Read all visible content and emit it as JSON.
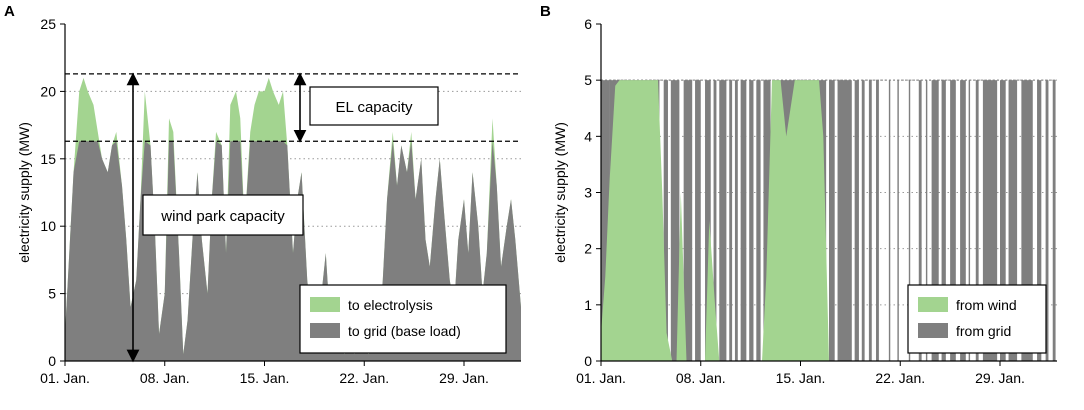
{
  "chart_data": [
    {
      "panel_label": "A",
      "type": "area",
      "stacked": true,
      "ylabel": "electricity supply (MW)",
      "ylim": [
        0,
        25
      ],
      "yticks": [
        "0",
        "5",
        "10",
        "15",
        "20",
        "25"
      ],
      "xlim": [
        0,
        32
      ],
      "xticks": [
        {
          "day": 0,
          "label": "01. Jan."
        },
        {
          "day": 7,
          "label": "08. Jan."
        },
        {
          "day": 14,
          "label": "15. Jan."
        },
        {
          "day": 21,
          "label": "22. Jan."
        },
        {
          "day": 28,
          "label": "29. Jan."
        }
      ],
      "grid_y": true,
      "base_load_limit": 16.3,
      "total_capacity": 21.3,
      "legend_position": "bottom-right",
      "series": [
        {
          "name": "to electrolysis",
          "color": "#a3d490"
        },
        {
          "name": "to grid (base load)",
          "color": "#7f7f7f"
        }
      ],
      "total_profile": {
        "x": [
          0,
          0.3,
          0.6,
          1.0,
          1.3,
          1.6,
          2.0,
          2.3,
          2.6,
          3.0,
          3.3,
          3.6,
          4.0,
          4.3,
          4.6,
          5.0,
          5.3,
          5.6,
          6.0,
          6.3,
          6.6,
          7.0,
          7.3,
          7.6,
          8.0,
          8.3,
          8.6,
          9.0,
          9.3,
          9.6,
          10.0,
          10.3,
          10.6,
          11.0,
          11.3,
          11.6,
          12.0,
          12.3,
          12.6,
          13.0,
          13.3,
          13.6,
          14.0,
          14.3,
          14.6,
          15.0,
          15.3,
          15.6,
          16.0,
          16.3,
          16.6,
          17.0,
          17.3,
          17.6,
          18.0,
          18.3,
          18.6,
          19.0,
          19.3,
          19.6,
          20.0,
          20.3,
          20.6,
          21.0,
          21.3,
          21.6,
          22.0,
          22.3,
          22.6,
          23.0,
          23.3,
          23.6,
          24.0,
          24.3,
          24.6,
          25.0,
          25.3,
          25.6,
          26.0,
          26.3,
          26.6,
          27.0,
          27.3,
          27.6,
          28.0,
          28.3,
          28.6,
          29.0,
          29.3,
          29.6,
          30.0,
          30.3,
          30.6,
          31.0,
          31.3,
          31.6,
          32.0
        ],
        "y": [
          2,
          8,
          14,
          20,
          21,
          20,
          19,
          17,
          15,
          14,
          16,
          17,
          13,
          9,
          4,
          6,
          12,
          20,
          16,
          10,
          2,
          5,
          18,
          17,
          8,
          0.5,
          3,
          10,
          14,
          9,
          5,
          12,
          17,
          16,
          8,
          19,
          20,
          18,
          10,
          17,
          19,
          20,
          20,
          21,
          20,
          19,
          20,
          16,
          8,
          12,
          14,
          6,
          3,
          2,
          5,
          8,
          3,
          1,
          2,
          0.5,
          1,
          0.5,
          2,
          1,
          0.5,
          1,
          2,
          6,
          12,
          17,
          13,
          16,
          14,
          17,
          12,
          15,
          9,
          7,
          12,
          15,
          11,
          6,
          4,
          9,
          12,
          8,
          14,
          10,
          5,
          8,
          18,
          13,
          7,
          10,
          12,
          9,
          4
        ]
      },
      "annotations": [
        {
          "text": "EL capacity",
          "type": "box"
        },
        {
          "text": "wind park capacity",
          "type": "box"
        }
      ]
    },
    {
      "panel_label": "B",
      "type": "area",
      "stacked": true,
      "ylabel": "electricity supply (MW)",
      "ylim": [
        0,
        6
      ],
      "yticks": [
        "0",
        "1",
        "2",
        "3",
        "4",
        "5",
        "6"
      ],
      "xlim": [
        0,
        32
      ],
      "xticks": [
        {
          "day": 0,
          "label": "01. Jan."
        },
        {
          "day": 7,
          "label": "08. Jan."
        },
        {
          "day": 14,
          "label": "15. Jan."
        },
        {
          "day": 21,
          "label": "22. Jan."
        },
        {
          "day": 28,
          "label": "29. Jan."
        }
      ],
      "grid_y": true,
      "legend_position": "bottom-right",
      "series": [
        {
          "name": "from wind",
          "color": "#a3d490"
        },
        {
          "name": "from grid",
          "color": "#7f7f7f"
        }
      ],
      "wind_profile": {
        "x": [
          0,
          0.3,
          0.6,
          1.0,
          1.3,
          1.6,
          2.0,
          2.3,
          2.6,
          3.0,
          3.3,
          3.6,
          4.0,
          4.3,
          4.6,
          5.0,
          5.3,
          5.6,
          6.0,
          6.3,
          6.6,
          7.0,
          7.3,
          7.6,
          8.0,
          8.3,
          8.6,
          9.0,
          9.3,
          9.6,
          10.0,
          10.3,
          10.6,
          11.0,
          11.3,
          11.6,
          12.0,
          12.3,
          12.6,
          13.0,
          13.3,
          13.6,
          14.0,
          14.3,
          14.6,
          15.0,
          15.3,
          15.6,
          16.0,
          16.3,
          16.6,
          17.0,
          17.3,
          17.6,
          18.0,
          18.3,
          18.6,
          19.0,
          19.3,
          19.6,
          20.0,
          20.3,
          20.6,
          21.0,
          21.3,
          21.6,
          22.0,
          22.3,
          22.6,
          23.0,
          23.3,
          23.6,
          24.0,
          24.3,
          24.6,
          25.0,
          25.3,
          25.6,
          26.0,
          26.3,
          26.6,
          27.0,
          27.3,
          27.6,
          28.0,
          28.3,
          28.6,
          29.0,
          29.3,
          29.6,
          30.0,
          30.3,
          30.6,
          31.0,
          31.3,
          31.6,
          32.0
        ],
        "y": [
          0.5,
          1.5,
          3.2,
          4.9,
          5,
          5,
          5,
          5,
          5,
          5,
          5,
          5,
          5,
          3,
          0.5,
          0,
          0,
          3,
          0,
          0,
          0,
          0,
          0,
          2.5,
          1,
          0,
          0,
          0,
          0,
          0,
          0,
          0,
          0,
          0,
          0,
          1.5,
          5,
          5,
          5,
          4,
          4.5,
          5,
          5,
          5,
          5,
          5,
          5,
          4,
          0,
          0,
          0,
          0,
          0,
          0,
          0,
          0,
          0,
          0,
          0,
          0,
          0,
          0,
          0,
          0,
          0,
          0,
          0,
          0,
          0,
          0,
          0,
          0,
          0,
          0,
          0,
          0,
          0,
          0,
          0,
          0,
          0,
          0,
          0,
          0,
          0,
          0,
          0,
          0,
          0,
          0,
          0,
          0,
          0,
          0,
          0,
          0,
          0
        ]
      },
      "grid_supply_level": 5,
      "annotations": []
    }
  ]
}
